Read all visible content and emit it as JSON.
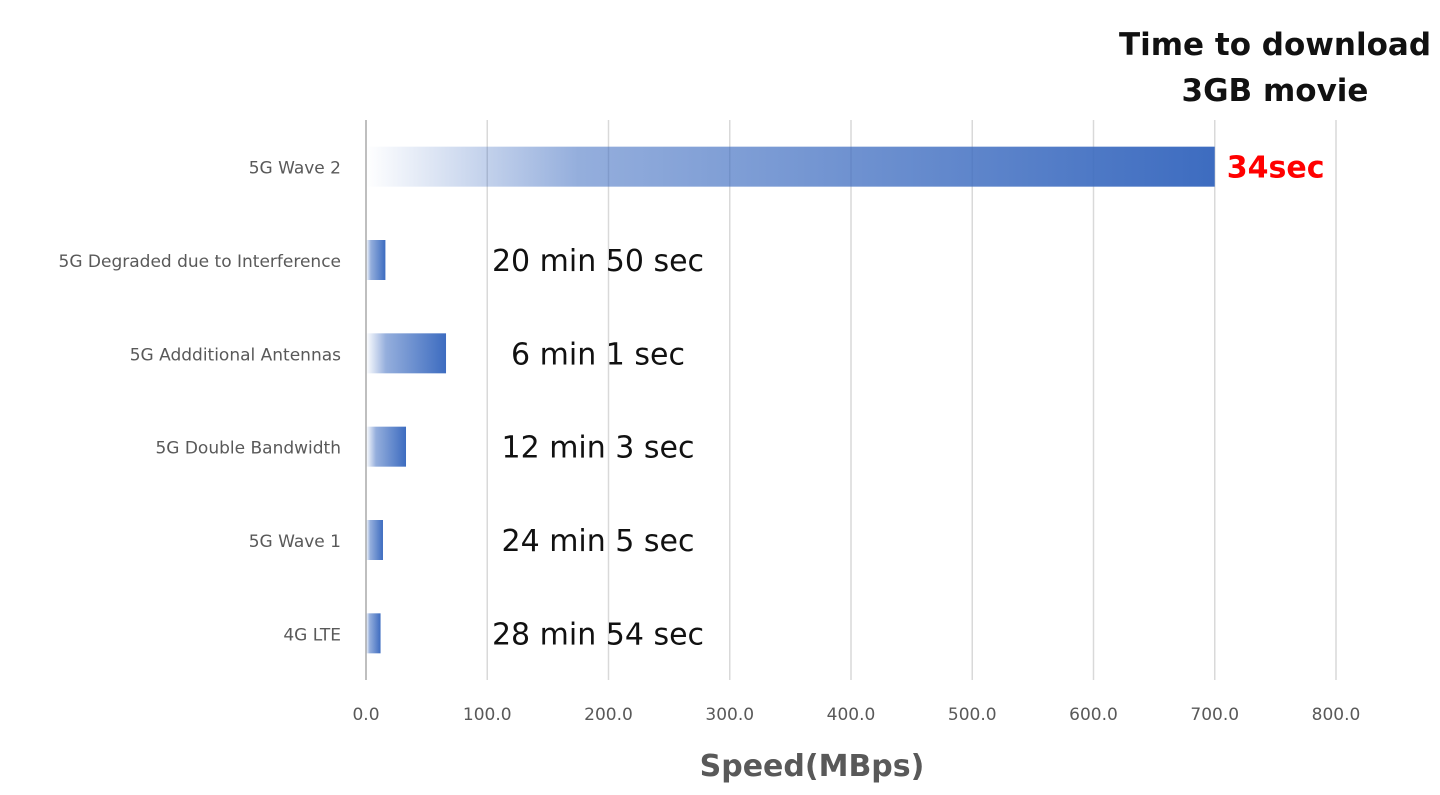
{
  "chart_data": {
    "type": "bar",
    "orientation": "horizontal",
    "title_lines": [
      "Time to download",
      "3GB movie"
    ],
    "xlabel": "Speed(MBps)",
    "ylabel": "",
    "xlim": [
      0,
      800
    ],
    "xticks": [
      "0.0",
      "100.0",
      "200.0",
      "300.0",
      "400.0",
      "500.0",
      "600.0",
      "700.0",
      "800.0"
    ],
    "grid": true,
    "categories": [
      "5G Wave 2",
      "5G Degraded due to Interference",
      "5G Addditional Antennas",
      "5G Double Bandwidth",
      "5G Wave 1",
      "4G LTE"
    ],
    "values": [
      700,
      16,
      66,
      33,
      14,
      12
    ],
    "data_labels": [
      "34sec",
      "20 min 50 sec",
      "6 min 1 sec",
      "12 min 3 sec",
      "24 min 5 sec",
      "28 min 54 sec"
    ],
    "highlight_label_color": "#ff0000",
    "bar_color": "#3d6cc0"
  }
}
